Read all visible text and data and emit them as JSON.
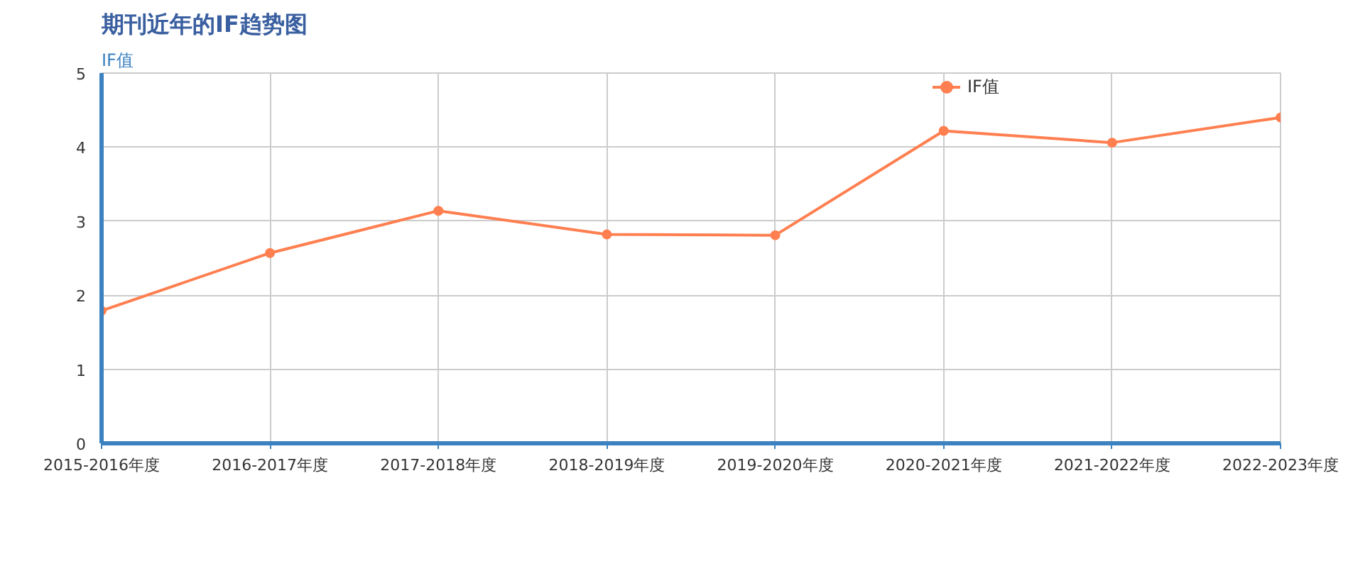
{
  "chart_data": {
    "type": "line",
    "title": "期刊近年的IF趋势图",
    "ylabel": "IF值",
    "categories": [
      "2015-2016年度",
      "2016-2017年度",
      "2017-2018年度",
      "2018-2019年度",
      "2019-2020年度",
      "2020-2021年度",
      "2021-2022年度",
      "2022-2023年度"
    ],
    "series": [
      {
        "name": "IF值",
        "color": "#ff7f50",
        "values": [
          1.79,
          2.57,
          3.14,
          2.82,
          2.81,
          4.22,
          4.06,
          4.4
        ]
      }
    ],
    "ylim": [
      0,
      5
    ],
    "yticks": [
      0,
      1,
      2,
      3,
      4,
      5
    ],
    "grid": true,
    "legend": "top right",
    "marker": "circle",
    "line_style": "solid"
  }
}
